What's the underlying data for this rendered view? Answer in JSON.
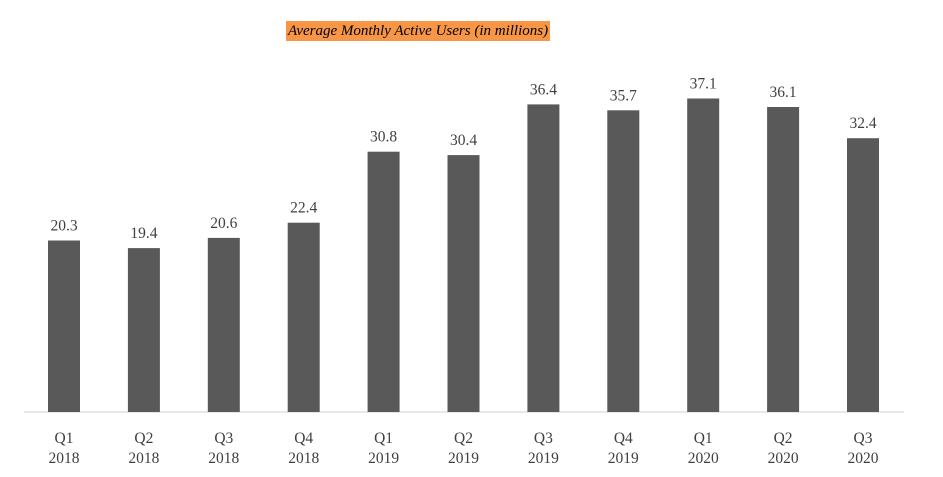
{
  "chart_data": {
    "type": "bar",
    "title": "Average Monthly Active Users (in millions)",
    "categories": [
      [
        "Q1",
        "2018"
      ],
      [
        "Q2",
        "2018"
      ],
      [
        "Q3",
        "2018"
      ],
      [
        "Q4",
        "2018"
      ],
      [
        "Q1",
        "2019"
      ],
      [
        "Q2",
        "2019"
      ],
      [
        "Q3",
        "2019"
      ],
      [
        "Q4",
        "2019"
      ],
      [
        "Q1",
        "2020"
      ],
      [
        "Q2",
        "2020"
      ],
      [
        "Q3",
        "2020"
      ]
    ],
    "values": [
      20.3,
      19.4,
      20.6,
      22.4,
      30.8,
      30.4,
      36.4,
      35.7,
      37.1,
      36.1,
      32.4
    ],
    "value_labels": [
      "20.3",
      "19.4",
      "20.6",
      "22.4",
      "30.8",
      "30.4",
      "36.4",
      "35.7",
      "37.1",
      "36.1",
      "32.4"
    ],
    "xlabel": "",
    "ylabel": "",
    "ylim": [
      0,
      42
    ],
    "grid": false,
    "bar_color": "#595959",
    "title_background": "#f79646"
  }
}
